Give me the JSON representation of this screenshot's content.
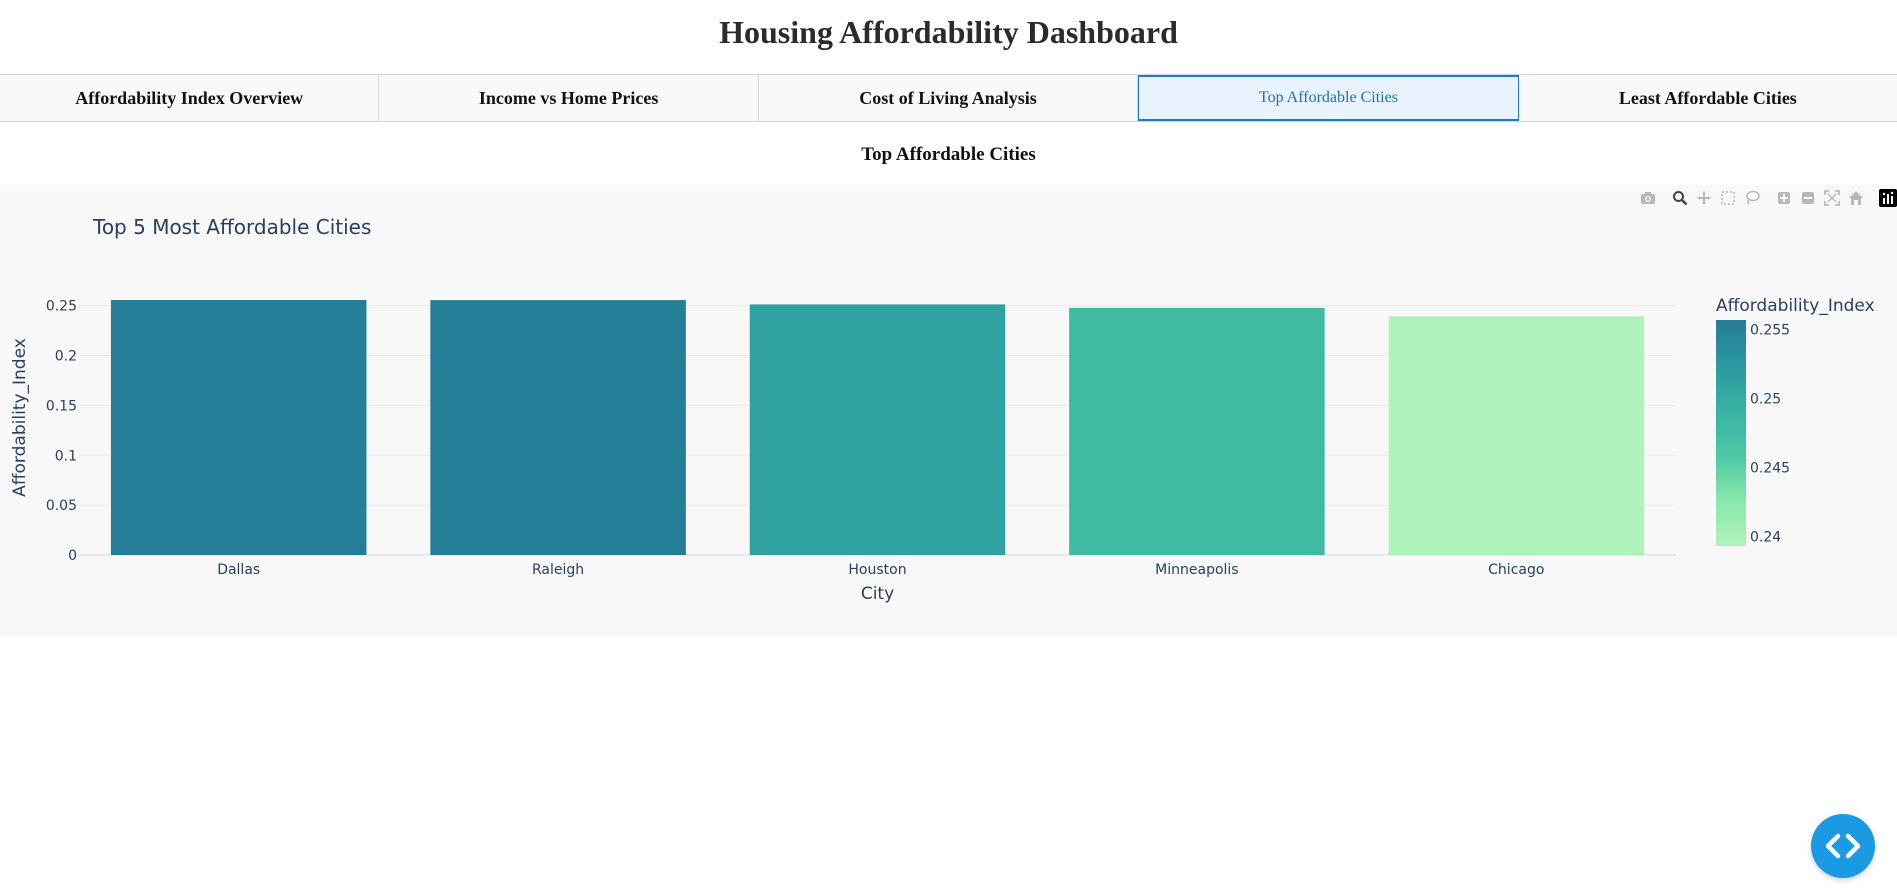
{
  "page": {
    "title": "Housing Affordability Dashboard"
  },
  "tabs": [
    {
      "label": "Affordability Index Overview",
      "active": false
    },
    {
      "label": "Income vs Home Prices",
      "active": false
    },
    {
      "label": "Cost of Living Analysis",
      "active": false
    },
    {
      "label": "Top Affordable Cities",
      "active": true
    },
    {
      "label": "Least Affordable Cities",
      "active": false
    }
  ],
  "section": {
    "title": "Top Affordable Cities"
  },
  "modebar": {
    "icons": [
      "camera-icon",
      "zoom-icon",
      "pan-icon",
      "box-select-icon",
      "lasso-icon",
      "zoom-in-icon",
      "zoom-out-icon",
      "autoscale-icon",
      "reset-axes-icon",
      "plotly-logo-icon"
    ]
  },
  "chart_data": {
    "type": "bar",
    "title": "Top 5 Most Affordable Cities",
    "xlabel": "City",
    "ylabel": "Affordability_Index",
    "categories": [
      "Dallas",
      "Raleigh",
      "Houston",
      "Minneapolis",
      "Chicago"
    ],
    "values": [
      0.2557,
      0.2556,
      0.2513,
      0.2478,
      0.2393
    ],
    "ylim": [
      0,
      0.2557
    ],
    "yticks": [
      0,
      0.05,
      0.1,
      0.15,
      0.2,
      0.25
    ],
    "ytick_labels": [
      "0",
      "0.05",
      "0.1",
      "0.15",
      "0.2",
      "0.25"
    ],
    "grid": true,
    "colorbar": {
      "title": "Affordability_Index",
      "range": [
        0.2393,
        0.2557
      ],
      "ticks": [
        0.24,
        0.245,
        0.25,
        0.255
      ],
      "tick_labels": [
        "0.24",
        "0.245",
        "0.25",
        "0.255"
      ],
      "colors": [
        "#b0f2bc",
        "#89e8ac",
        "#4cc8a3",
        "#38b2a3",
        "#2c98a0",
        "#257d98"
      ]
    },
    "background": "#f8f8f8",
    "text_color": "#2a3f5f"
  },
  "colors": {
    "accent": "#1f78d1",
    "fab": "#1a9ae3"
  }
}
